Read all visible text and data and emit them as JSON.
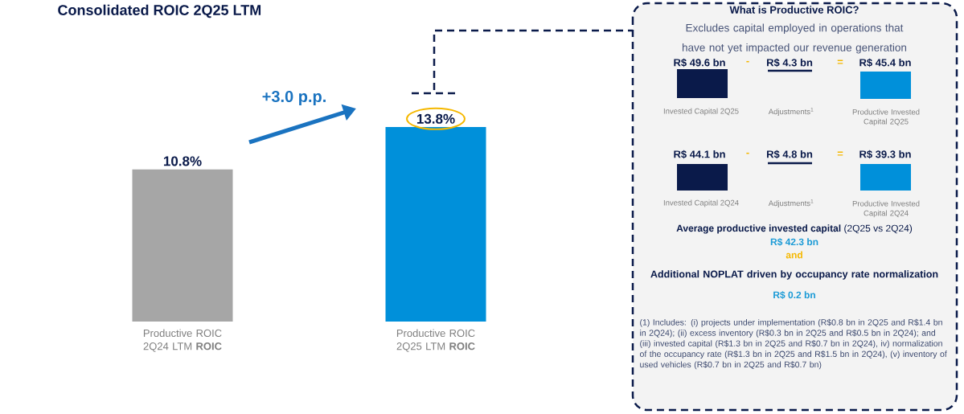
{
  "chart_data": {
    "type": "bar",
    "title": "Consolidated ROIC 2Q25 LTM",
    "categories": [
      "Productive ROIC 2Q24 LTM **ROIC**",
      "Productive ROIC 2Q25 LTM **ROIC**"
    ],
    "values": [
      10.8,
      13.8
    ],
    "colors": [
      "#a6a6a6",
      "#0090da"
    ],
    "value_labels": [
      "10.8%",
      "13.8%"
    ],
    "annotations": [
      "+3.0 p.p.",
      "What is Productive ROIC?",
      "Excludes capital employed in operations that have not yet impacted our revenue generation",
      "R$ 49.6 bn",
      "-",
      "R$ 4.3 bn",
      "=",
      "R$ 45.4 bn",
      "Invested Capital 2Q25",
      "Adjustments$^{1}$",
      "Productive Invested Capital 2Q25",
      "R$ 44.1 bn",
      "-",
      "R$ 4.8 bn",
      "=",
      "R$ 39.3 bn",
      "Invested Capital 2Q24",
      "Adjustments$^{1}$",
      "Productive Invested Capital 2Q24",
      "**Average productive invested capital** (2Q25 vs 2Q24)",
      "R$ 42.3 bn",
      "and",
      "Additional NOPLAT driven by occupancy rate normalization",
      "R$ 0.2 bn",
      "(1) Includes: (i) projects under implementation (R$0.8 bn in 2Q25 and R$1.4 bn in 2Q24); (ii) excess inventory (R$0.3 bn in 2Q25 and R$0.5 bn in 2Q24); and (iii) invested capital (R$1.3 bn in 2Q25 and R$0.7 bn in 2Q24), iv) normalization of the occupancy rate (R$1.3 bn in 2Q25 and R$1.5 bn in 2Q24), (v) inventory of used vehicles (R$0.7 bn in 2Q25 and R$0.7 bn)"
    ]
  }
}
